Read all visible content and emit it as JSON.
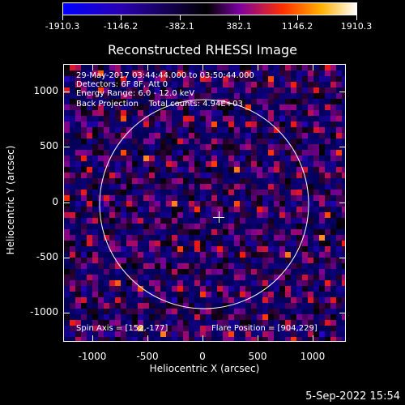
{
  "colorbar": {
    "ticks": [
      "-1910.3",
      "-1146.2",
      "-382.1",
      "382.1",
      "1146.2",
      "1910.3"
    ],
    "min": -1910.3,
    "max": 1910.3
  },
  "title": "Reconstructed RHESSI Image",
  "info": {
    "line1": "29-May-2017 03:44:44.000 to 03:50:44.000",
    "line2": "Detectors: 6F 8F, Att 0",
    "line3": "Energy Range: 6.0 - 12.0 keV",
    "line4": "Back Projection    Total counts: 4.94E+03",
    "spin_axis": "Spin Axis = [152,-177]",
    "flare_position": "Flare Position = [904,229]"
  },
  "axes": {
    "xlabel": "Heliocentric X (arcsec)",
    "ylabel": "Heliocentric Y (arcsec)",
    "xticks": [
      "-1000",
      "-500",
      "0",
      "500",
      "1000"
    ],
    "yticks": [
      "1000",
      "500",
      "0",
      "-500",
      "-1000"
    ],
    "xlim": [
      -1290,
      1270
    ],
    "ylim": [
      -1265,
      1265
    ]
  },
  "timestamp": "5-Sep-2022 15:54",
  "colors": {
    "negative": "#0000ff",
    "zero": "#000000",
    "positive_low": "#7a00a0",
    "positive_mid": "#ff3000",
    "positive_high": "#ffffff"
  }
}
